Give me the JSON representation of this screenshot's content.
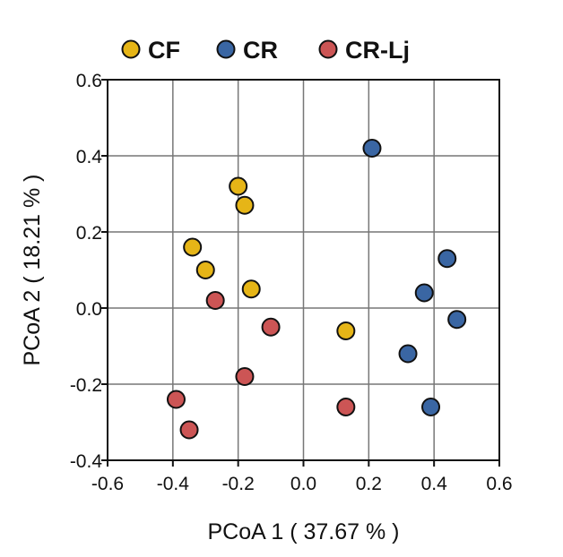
{
  "chart_data": {
    "type": "scatter",
    "xlabel": "PCoA 1 ( 37.67 % )",
    "ylabel": "PCoA 2 ( 18.21 % )",
    "xlim": [
      -0.6,
      0.6
    ],
    "ylim": [
      -0.4,
      0.6
    ],
    "xticks": [
      "-0.6",
      "-0.4",
      "-0.2",
      "0.0",
      "0.2",
      "0.4",
      "0.6"
    ],
    "yticks": [
      "-0.4",
      "-0.2",
      "0.0",
      "0.2",
      "0.4",
      "0.6"
    ],
    "grid": true,
    "legend_position": "top",
    "series": [
      {
        "name": "CF",
        "color": "#e6b517",
        "points": [
          {
            "x": -0.2,
            "y": 0.32
          },
          {
            "x": -0.18,
            "y": 0.27
          },
          {
            "x": -0.34,
            "y": 0.16
          },
          {
            "x": -0.3,
            "y": 0.1
          },
          {
            "x": -0.16,
            "y": 0.05
          },
          {
            "x": 0.13,
            "y": -0.06
          }
        ]
      },
      {
        "name": "CR",
        "color": "#3a66a3",
        "points": [
          {
            "x": 0.21,
            "y": 0.42
          },
          {
            "x": 0.44,
            "y": 0.13
          },
          {
            "x": 0.37,
            "y": 0.04
          },
          {
            "x": 0.47,
            "y": -0.03
          },
          {
            "x": 0.32,
            "y": -0.12
          },
          {
            "x": 0.39,
            "y": -0.26
          }
        ]
      },
      {
        "name": "CR-Lj",
        "color": "#cc5555",
        "points": [
          {
            "x": -0.27,
            "y": 0.02
          },
          {
            "x": -0.1,
            "y": -0.05
          },
          {
            "x": -0.18,
            "y": -0.18
          },
          {
            "x": -0.39,
            "y": -0.24
          },
          {
            "x": -0.35,
            "y": -0.32
          },
          {
            "x": 0.13,
            "y": -0.26
          }
        ]
      }
    ]
  }
}
